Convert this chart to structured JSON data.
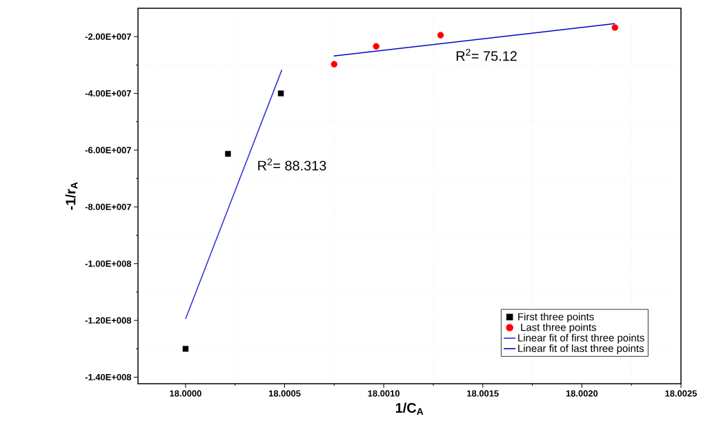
{
  "chart_data": {
    "type": "scatter",
    "xlabel": "1/C$_{A}$",
    "ylabel": "-1/r$_{A}$",
    "xlim": [
      17.99976,
      18.0025
    ],
    "ylim": [
      -142300000,
      -10000000
    ],
    "xticks": [
      {
        "value": 18.0,
        "label": "18.0000"
      },
      {
        "value": 18.0005,
        "label": "18.0005"
      },
      {
        "value": 18.001,
        "label": "18.0010"
      },
      {
        "value": 18.0015,
        "label": "18.0015"
      },
      {
        "value": 18.002,
        "label": "18.0020"
      },
      {
        "value": 18.0025,
        "label": "18.0025"
      }
    ],
    "yticks": [
      {
        "value": -140000000,
        "label": "-1.40E+008"
      },
      {
        "value": -120000000,
        "label": "-1.20E+008"
      },
      {
        "value": -100000000,
        "label": "-1.00E+008"
      },
      {
        "value": -80000000,
        "label": "-8.00E+007"
      },
      {
        "value": -60000000,
        "label": "-6.00E+007"
      },
      {
        "value": -40000000,
        "label": "-4.00E+007"
      },
      {
        "value": -20000000,
        "label": "-2.00E+007"
      }
    ],
    "grid": true,
    "legend": "bottom right",
    "series": [
      {
        "name": "First three points",
        "marker": "square",
        "color": "#000000",
        "x": [
          18.0,
          18.000214,
          18.000481
        ],
        "values": [
          -130000000,
          -61300000,
          -40000000
        ]
      },
      {
        "name": " Last three points",
        "marker": "circle",
        "color": "#ff0000",
        "x": [
          18.00075,
          18.000962,
          18.001287,
          18.002167
        ],
        "values": [
          -29700000,
          -23400000,
          -19500000,
          -16800000
        ]
      },
      {
        "name": "Linear fit of first three points",
        "type": "line",
        "color": "#2b2bd6",
        "x": [
          18.0,
          18.000486
        ],
        "values": [
          -119500000,
          -31700000
        ]
      },
      {
        "name": "Linear fit of last three points",
        "type": "line",
        "color": "#0000c8",
        "x": [
          18.000748,
          18.002167
        ],
        "values": [
          -26800000,
          -15400000
        ]
      }
    ],
    "annotations": [
      "R$^{2}$= 88.313",
      "R$^{2}$= 75.12"
    ]
  }
}
